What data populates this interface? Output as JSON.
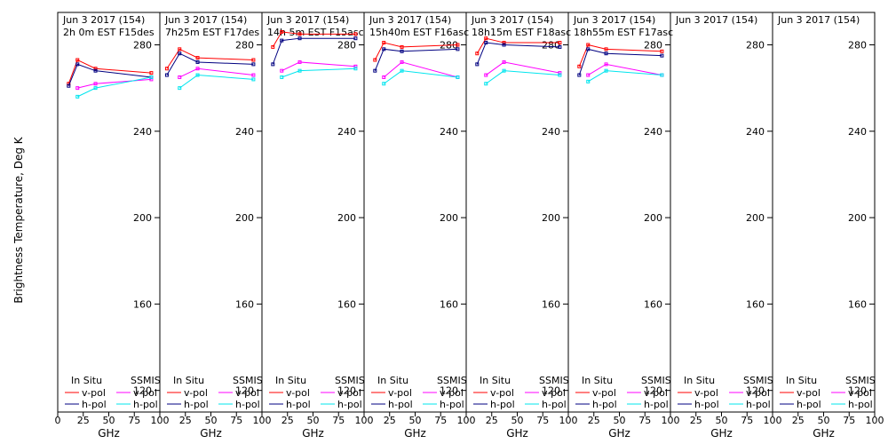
{
  "chart_data": {
    "type": "line",
    "ylabel": "Brightness Temperature, Deg K",
    "xlabel": "GHz",
    "xlim": [
      0,
      100
    ],
    "ylim": [
      110,
      295
    ],
    "xticks": [
      0,
      25,
      50,
      75,
      100
    ],
    "yticks": [
      120,
      160,
      200,
      240,
      280
    ],
    "xtick_labels_first": [
      "0",
      "25",
      "50",
      "75",
      "100"
    ],
    "xtick_labels_rest": [
      "",
      "25",
      "50",
      "75",
      "100"
    ],
    "legend": {
      "insitu_label": "In Situ",
      "ssmis_label": "SSMIS",
      "vpol_label": "v-pol",
      "hpol_label": "h-pol"
    },
    "colors": {
      "insitu_v": "#ff0000",
      "insitu_h": "#000080",
      "ssmis_v": "#ff00ff",
      "ssmis_h": "#00e5ee"
    },
    "panels": [
      {
        "date": "Jun 3 2017 (154)",
        "subtitle": "2h 0m  EST F15des",
        "series": {
          "insitu_v": {
            "x": [
              10.7,
              19.35,
              37,
              91.65
            ],
            "y": [
              262,
              273,
              269,
              267
            ]
          },
          "insitu_h": {
            "x": [
              10.7,
              19.35,
              37,
              91.65
            ],
            "y": [
              261,
              271,
              268,
              265
            ]
          },
          "ssmis_v": {
            "x": [
              19.35,
              37,
              91.65
            ],
            "y": [
              260,
              262,
              264
            ]
          },
          "ssmis_h": {
            "x": [
              19.35,
              37,
              91.65
            ],
            "y": [
              256,
              260,
              265
            ]
          }
        }
      },
      {
        "date": "Jun 3 2017 (154)",
        "subtitle": "7h25m  EST F17des",
        "series": {
          "insitu_v": {
            "x": [
              6.9,
              19.35,
              37,
              91.65
            ],
            "y": [
              269,
              278,
              274,
              273
            ]
          },
          "insitu_h": {
            "x": [
              6.9,
              19.35,
              37,
              91.65
            ],
            "y": [
              266,
              276,
              272,
              271
            ]
          },
          "ssmis_v": {
            "x": [
              19.35,
              37,
              91.65
            ],
            "y": [
              265,
              269,
              266
            ]
          },
          "ssmis_h": {
            "x": [
              19.35,
              37,
              91.65
            ],
            "y": [
              260,
              266,
              264
            ]
          }
        }
      },
      {
        "date": "Jun 3 2017 (154)",
        "subtitle": "14h 5m  EST F15asc",
        "series": {
          "insitu_v": {
            "x": [
              10.7,
              19.35,
              37,
              91.65
            ],
            "y": [
              279,
              286,
              285,
              285
            ]
          },
          "insitu_h": {
            "x": [
              10.7,
              19.35,
              37,
              91.65
            ],
            "y": [
              271,
              282,
              283,
              283
            ]
          },
          "ssmis_v": {
            "x": [
              19.35,
              37,
              91.65
            ],
            "y": [
              268,
              272,
              270
            ]
          },
          "ssmis_h": {
            "x": [
              19.35,
              37,
              91.65
            ],
            "y": [
              265,
              268,
              269
            ]
          }
        }
      },
      {
        "date": "Jun 3 2017 (154)",
        "subtitle": "15h40m  EST F16asc",
        "series": {
          "insitu_v": {
            "x": [
              10.7,
              19.35,
              37,
              91.65
            ],
            "y": [
              273,
              281,
              279,
              280
            ]
          },
          "insitu_h": {
            "x": [
              10.7,
              19.35,
              37,
              91.65
            ],
            "y": [
              268,
              278,
              277,
              278
            ]
          },
          "ssmis_v": {
            "x": [
              19.35,
              37,
              91.65
            ],
            "y": [
              265,
              272,
              265
            ]
          },
          "ssmis_h": {
            "x": [
              19.35,
              37,
              91.65
            ],
            "y": [
              262,
              268,
              265
            ]
          }
        }
      },
      {
        "date": "Jun 3 2017 (154)",
        "subtitle": "18h15m  EST F18asc",
        "series": {
          "insitu_v": {
            "x": [
              10.7,
              19.35,
              37,
              91.65
            ],
            "y": [
              276,
              283,
              281,
              281
            ]
          },
          "insitu_h": {
            "x": [
              10.7,
              19.35,
              37,
              91.65
            ],
            "y": [
              271,
              281,
              280,
              279
            ]
          },
          "ssmis_v": {
            "x": [
              19.35,
              37,
              91.65
            ],
            "y": [
              266,
              272,
              267
            ]
          },
          "ssmis_h": {
            "x": [
              19.35,
              37,
              91.65
            ],
            "y": [
              262,
              268,
              266
            ]
          }
        }
      },
      {
        "date": "Jun 3 2017 (154)",
        "subtitle": "18h55m  EST F17asc",
        "series": {
          "insitu_v": {
            "x": [
              10.7,
              19.35,
              37,
              91.65
            ],
            "y": [
              270,
              280,
              278,
              277
            ]
          },
          "insitu_h": {
            "x": [
              10.7,
              19.35,
              37,
              91.65
            ],
            "y": [
              266,
              278,
              276,
              275
            ]
          },
          "ssmis_v": {
            "x": [
              19.35,
              37,
              91.65
            ],
            "y": [
              266,
              271,
              266
            ]
          },
          "ssmis_h": {
            "x": [
              19.35,
              37,
              91.65
            ],
            "y": [
              263,
              268,
              266
            ]
          }
        }
      },
      {
        "date": "Jun 3 2017 (154)",
        "subtitle": "",
        "series": {}
      },
      {
        "date": "Jun 3 2017 (154)",
        "subtitle": "",
        "series": {}
      }
    ]
  }
}
